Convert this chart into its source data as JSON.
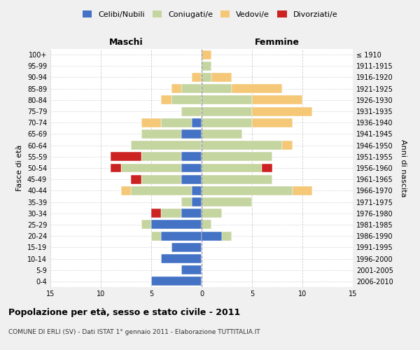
{
  "age_groups": [
    "0-4",
    "5-9",
    "10-14",
    "15-19",
    "20-24",
    "25-29",
    "30-34",
    "35-39",
    "40-44",
    "45-49",
    "50-54",
    "55-59",
    "60-64",
    "65-69",
    "70-74",
    "75-79",
    "80-84",
    "85-89",
    "90-94",
    "95-99",
    "100+"
  ],
  "birth_years": [
    "2006-2010",
    "2001-2005",
    "1996-2000",
    "1991-1995",
    "1986-1990",
    "1981-1985",
    "1976-1980",
    "1971-1975",
    "1966-1970",
    "1961-1965",
    "1956-1960",
    "1951-1955",
    "1946-1950",
    "1941-1945",
    "1936-1940",
    "1931-1935",
    "1926-1930",
    "1921-1925",
    "1916-1920",
    "1911-1915",
    "≤ 1910"
  ],
  "colors": {
    "celibi": "#4472C4",
    "coniugati": "#c5d5a0",
    "vedovi": "#f5c878",
    "divorziati": "#cc2222"
  },
  "maschi": {
    "celibi": [
      5,
      2,
      4,
      3,
      4,
      5,
      2,
      1,
      1,
      2,
      2,
      2,
      0,
      2,
      1,
      0,
      0,
      0,
      0,
      0,
      0
    ],
    "coniugati": [
      0,
      0,
      0,
      0,
      1,
      1,
      2,
      1,
      6,
      4,
      6,
      4,
      7,
      4,
      3,
      2,
      3,
      2,
      0,
      0,
      0
    ],
    "vedovi": [
      0,
      0,
      0,
      0,
      0,
      0,
      0,
      0,
      1,
      0,
      0,
      0,
      0,
      0,
      2,
      0,
      1,
      1,
      1,
      0,
      0
    ],
    "divorziati": [
      0,
      0,
      0,
      0,
      0,
      0,
      1,
      0,
      0,
      1,
      1,
      3,
      0,
      0,
      0,
      0,
      0,
      0,
      0,
      0,
      0
    ]
  },
  "femmine": {
    "nubili": [
      0,
      0,
      0,
      0,
      2,
      0,
      0,
      0,
      0,
      0,
      0,
      0,
      0,
      0,
      0,
      0,
      0,
      0,
      0,
      0,
      0
    ],
    "coniugate": [
      0,
      0,
      0,
      0,
      1,
      1,
      2,
      5,
      9,
      7,
      6,
      7,
      8,
      4,
      5,
      5,
      5,
      3,
      1,
      1,
      0
    ],
    "vedove": [
      0,
      0,
      0,
      0,
      0,
      0,
      0,
      0,
      2,
      0,
      0,
      0,
      1,
      0,
      4,
      6,
      5,
      5,
      2,
      0,
      1
    ],
    "divorziate": [
      0,
      0,
      0,
      0,
      0,
      0,
      0,
      0,
      0,
      0,
      1,
      0,
      0,
      0,
      0,
      0,
      0,
      0,
      0,
      0,
      0
    ]
  },
  "xlim": 15,
  "title": "Popolazione per età, sesso e stato civile - 2011",
  "subtitle": "COMUNE DI ERLI (SV) - Dati ISTAT 1° gennaio 2011 - Elaborazione TUTTITALIA.IT",
  "ylabel_left": "Fasce di età",
  "ylabel_right": "Anni di nascita",
  "legend_labels": [
    "Celibi/Nubili",
    "Coniugati/e",
    "Vedovi/e",
    "Divorziati/e"
  ],
  "maschi_label": "Maschi",
  "femmine_label": "Femmine",
  "bg_color": "#f0f0f0",
  "plot_bg": "#ffffff"
}
